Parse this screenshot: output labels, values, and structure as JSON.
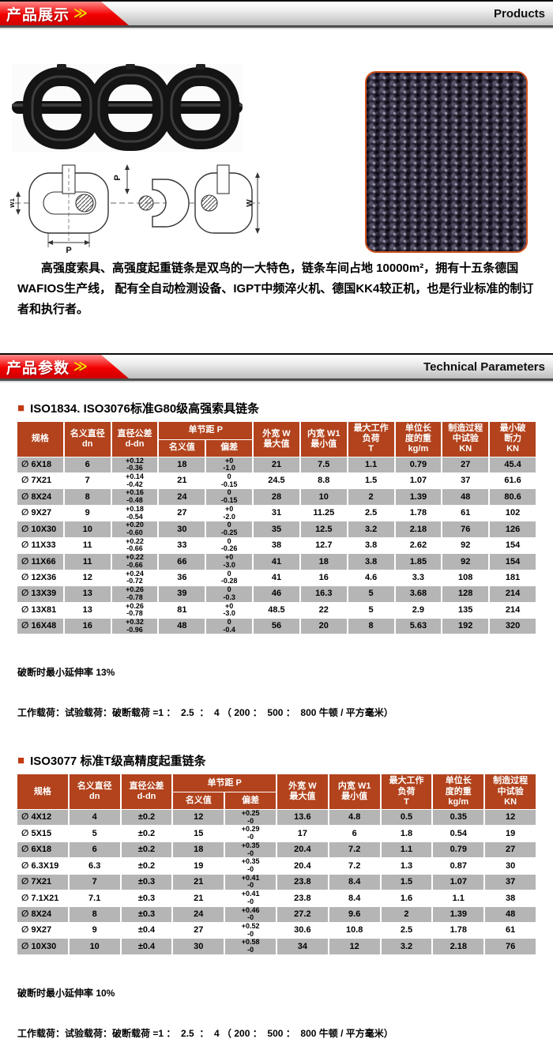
{
  "colors": {
    "banner_red": "#f30000",
    "chevron_yellow": "#ffd800",
    "table_header_bg": "#b2431d",
    "row_gray": "#b5b5b5",
    "photo_border_orange": "#d0521e",
    "title_bullet": "#c23a12"
  },
  "icons": {
    "bullet": "■"
  },
  "banner_products": {
    "title_zh": "产品展示",
    "chevron": "≫",
    "title_en": "Products"
  },
  "banner_parameters": {
    "title_zh": "产品参数",
    "chevron": "≫",
    "title_en": "Technical Parameters"
  },
  "intro_text": "高强度索具、高强度起重链条是双鸟的一大特色，链条车间占地 10000m²，拥有十五条德国WAFIOS生产线， 配有全自动检测设备、IGPT中频淬火机、德国KK4较正机，也是行业标准的制订者和执行者。",
  "diagram": {
    "label_pitch_top": "P",
    "label_inner_width": "W1",
    "label_pitch_bottom": "P",
    "label_outer_width": "W"
  },
  "table1": {
    "title": "ISO1834. ISO3076标准G80级高强索具链条",
    "columns": [
      {
        "label": "规格"
      },
      {
        "label": "名义直径\ndn"
      },
      {
        "label": "直径公差\nd-dn"
      },
      {
        "label": "单节距 P",
        "children": [
          "名义值",
          "偏差"
        ]
      },
      {
        "label": "外宽 W\n最大值"
      },
      {
        "label": "内宽 W1\n最小值"
      },
      {
        "label": "最大工作\n负荷\nT"
      },
      {
        "label": "单位长\n度的重\nkg/m"
      },
      {
        "label": "制造过程\n中试验\nKN"
      },
      {
        "label": "最小破\n断力\nKN"
      }
    ],
    "rows": [
      [
        "∅ 6X18",
        "6",
        "+0.12\n-0.36",
        "18",
        "+0\n-1.0",
        "21",
        "7.5",
        "1.1",
        "0.79",
        "27",
        "45.4"
      ],
      [
        "∅ 7X21",
        "7",
        "+0.14\n-0.42",
        "21",
        "0\n-0.15",
        "24.5",
        "8.8",
        "1.5",
        "1.07",
        "37",
        "61.6"
      ],
      [
        "∅ 8X24",
        "8",
        "+0.16\n-0.48",
        "24",
        "0\n-0.15",
        "28",
        "10",
        "2",
        "1.39",
        "48",
        "80.6"
      ],
      [
        "∅ 9X27",
        "9",
        "+0.18\n-0.54",
        "27",
        "+0\n-2.0",
        "31",
        "11.25",
        "2.5",
        "1.78",
        "61",
        "102"
      ],
      [
        "∅ 10X30",
        "10",
        "+0.20\n-0.60",
        "30",
        "0\n-0.25",
        "35",
        "12.5",
        "3.2",
        "2.18",
        "76",
        "126"
      ],
      [
        "∅ 11X33",
        "11",
        "+0.22\n-0.66",
        "33",
        "0\n-0.26",
        "38",
        "12.7",
        "3.8",
        "2.62",
        "92",
        "154"
      ],
      [
        "∅ 11X66",
        "11",
        "+0.22\n-0.66",
        "66",
        "+0\n-3.0",
        "41",
        "18",
        "3.8",
        "1.85",
        "92",
        "154"
      ],
      [
        "∅ 12X36",
        "12",
        "+0.24\n-0.72",
        "36",
        "0\n-0.28",
        "41",
        "16",
        "4.6",
        "3.3",
        "108",
        "181"
      ],
      [
        "∅ 13X39",
        "13",
        "+0.26\n-0.78",
        "39",
        "0\n-0.3",
        "46",
        "16.3",
        "5",
        "3.68",
        "128",
        "214"
      ],
      [
        "∅ 13X81",
        "13",
        "+0.26\n-0.78",
        "81",
        "+0\n-3.0",
        "48.5",
        "22",
        "5",
        "2.9",
        "135",
        "214"
      ],
      [
        "∅ 16X48",
        "16",
        "+0.32\n-0.96",
        "48",
        "0\n-0.4",
        "56",
        "20",
        "8",
        "5.63",
        "192",
        "320"
      ]
    ],
    "note_elongation": "破断时最小延伸率 13%",
    "note_ratio": "工作载荷：试验载荷：破断载荷 =1 ：  2.5  ：  4 （ 200 ：  500 ：  800 牛顿 / 平方毫米）"
  },
  "table2": {
    "title": "ISO3077 标准T级高精度起重链条",
    "columns": [
      {
        "label": "规格"
      },
      {
        "label": "名义直径\ndn"
      },
      {
        "label": "直径公差\nd-dn"
      },
      {
        "label": "单节距 P",
        "children": [
          "名义值",
          "偏差"
        ]
      },
      {
        "label": "外宽 W\n最大值"
      },
      {
        "label": "内宽 W1\n最小值"
      },
      {
        "label": "最大工作\n负荷\nT"
      },
      {
        "label": "单位长\n度的重\nkg/m"
      },
      {
        "label": "制造过程\n中试验\nKN"
      }
    ],
    "rows": [
      [
        "∅ 4X12",
        "4",
        "±0.2",
        "12",
        "+0.25\n-0",
        "13.6",
        "4.8",
        "0.5",
        "0.35",
        "12"
      ],
      [
        "∅ 5X15",
        "5",
        "±0.2",
        "15",
        "+0.29\n-0",
        "17",
        "6",
        "1.8",
        "0.54",
        "19"
      ],
      [
        "∅ 6X18",
        "6",
        "±0.2",
        "18",
        "+0.35\n-0",
        "20.4",
        "7.2",
        "1.1",
        "0.79",
        "27"
      ],
      [
        "∅ 6.3X19",
        "6.3",
        "±0.2",
        "19",
        "+0.35\n-0",
        "20.4",
        "7.2",
        "1.3",
        "0.87",
        "30"
      ],
      [
        "∅ 7X21",
        "7",
        "±0.3",
        "21",
        "+0.41\n-0",
        "23.8",
        "8.4",
        "1.5",
        "1.07",
        "37"
      ],
      [
        "∅ 7.1X21",
        "7.1",
        "±0.3",
        "21",
        "+0.41\n-0",
        "23.8",
        "8.4",
        "1.6",
        "1.1",
        "38"
      ],
      [
        "∅ 8X24",
        "8",
        "±0.3",
        "24",
        "+0.46\n-0",
        "27.2",
        "9.6",
        "2",
        "1.39",
        "48"
      ],
      [
        "∅ 9X27",
        "9",
        "±0.4",
        "27",
        "+0.52\n-0",
        "30.6",
        "10.8",
        "2.5",
        "1.78",
        "61"
      ],
      [
        "∅ 10X30",
        "10",
        "±0.4",
        "30",
        "+0.58\n-0",
        "34",
        "12",
        "3.2",
        "2.18",
        "76"
      ]
    ],
    "note_elongation": "破断时最小延伸率 10%",
    "note_ratio": "工作载荷：试验载荷：破断载荷 =1 ：  2.5  ：  4 （ 200 ：  500 ：  800 牛顿 / 平方毫米）"
  }
}
